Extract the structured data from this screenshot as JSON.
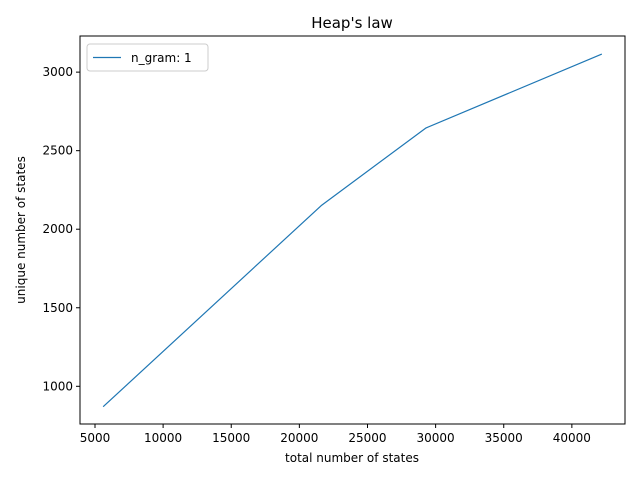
{
  "chart_data": {
    "type": "line",
    "title": "Heap's law",
    "xlabel": "total number of states",
    "ylabel": "unique number of states",
    "xlim": [
      3900,
      43900
    ],
    "ylim": [
      760,
      3230
    ],
    "xticks": [
      5000,
      10000,
      15000,
      20000,
      25000,
      30000,
      35000,
      40000
    ],
    "yticks": [
      1000,
      1500,
      2000,
      2500,
      3000
    ],
    "grid": false,
    "legend_position": "top-left",
    "series": [
      {
        "name": "n_gram: 1",
        "color": "#1f77b4",
        "x": [
          5600,
          21600,
          29300,
          42200
        ],
        "y": [
          870,
          2150,
          2645,
          3115
        ]
      }
    ]
  }
}
